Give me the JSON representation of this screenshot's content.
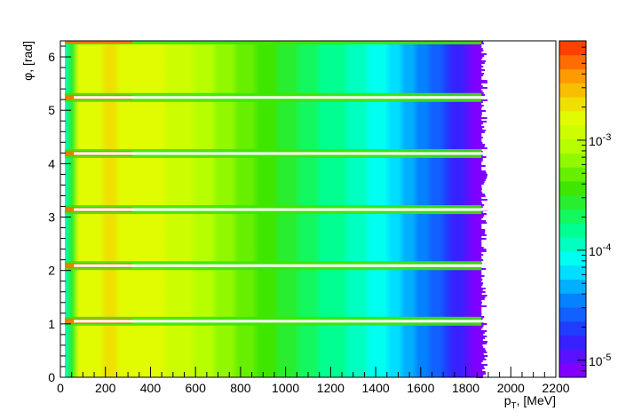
{
  "chart_data": {
    "type": "heatmap",
    "xlabel": "p_{T}, [MeV]",
    "ylabel": "φ, [rad]",
    "xlim": [
      0,
      2200
    ],
    "ylim": [
      0,
      6.3
    ],
    "x_ticks": [
      0,
      200,
      400,
      600,
      800,
      1000,
      1200,
      1400,
      1600,
      1800,
      2000,
      2200
    ],
    "y_ticks": [
      0,
      1,
      2,
      3,
      4,
      5,
      6
    ],
    "colorbar": {
      "scale": "log",
      "range": [
        7e-06,
        0.008
      ],
      "tick_labels": [
        {
          "base": "10",
          "exp": "-5",
          "value": 1e-05
        },
        {
          "base": "10",
          "exp": "-4",
          "value": 0.0001
        },
        {
          "base": "10",
          "exp": "-3",
          "value": 0.001
        }
      ]
    },
    "pt_profile": [
      {
        "pt": 20,
        "level": 0.0001
      },
      {
        "pt": 50,
        "level": 0.0015
      },
      {
        "pt": 200,
        "level": 0.002
      },
      {
        "pt": 300,
        "level": 0.0016
      },
      {
        "pt": 500,
        "level": 0.0013
      },
      {
        "pt": 700,
        "level": 0.0007
      },
      {
        "pt": 900,
        "level": 0.00035
      },
      {
        "pt": 1100,
        "level": 0.0002
      },
      {
        "pt": 1300,
        "level": 0.00012
      },
      {
        "pt": 1500,
        "level": 6e-05
      },
      {
        "pt": 1650,
        "level": 3e-05
      },
      {
        "pt": 1800,
        "level": 1.2e-05
      },
      {
        "pt": 1860,
        "level": 8e-06
      }
    ],
    "gap_phi": [
      1.05,
      2.09,
      3.14,
      4.19,
      5.24,
      6.28
    ],
    "pt_endpoint": 1870
  }
}
